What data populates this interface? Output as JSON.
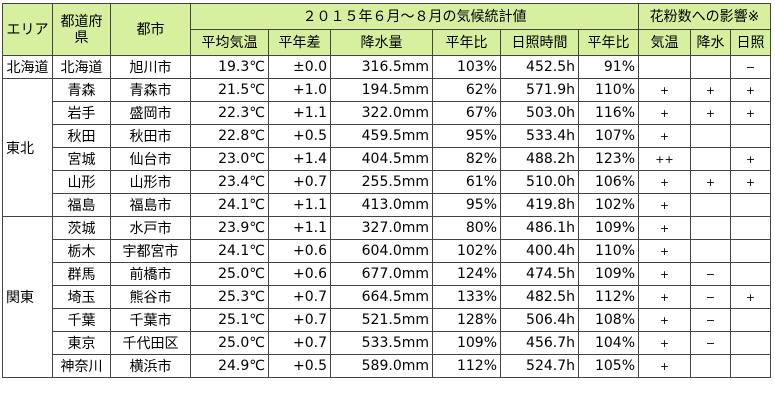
{
  "table": {
    "header": {
      "area": "エリア",
      "pref": "都道府県",
      "city": "都市",
      "period": "２０１５年６月～８月の気候統計値",
      "effect": "花粉数への影響※",
      "columns": [
        "平均気温",
        "平年差",
        "降水量",
        "平年比",
        "日照時間",
        "平年比",
        "気温",
        "降水",
        "日照"
      ]
    },
    "groups": [
      {
        "area": "北海道",
        "rows": [
          [
            "北海道",
            "旭川市",
            "19.3℃",
            "±0.0",
            "316.5mm",
            "103%",
            "452.5h",
            "91%",
            null,
            null,
            "−"
          ]
        ]
      },
      {
        "area": "東北",
        "rows": [
          [
            "青森",
            "青森市",
            "21.5℃",
            "+1.0",
            "194.5mm",
            "62%",
            "571.9h",
            "110%",
            "+",
            "+",
            "+"
          ],
          [
            "岩手",
            "盛岡市",
            "22.3℃",
            "+1.1",
            "322.0mm",
            "67%",
            "503.0h",
            "116%",
            "+",
            "+",
            "+"
          ],
          [
            "秋田",
            "秋田市",
            "22.8℃",
            "+0.5",
            "459.5mm",
            "95%",
            "533.4h",
            "107%",
            "+",
            null,
            null
          ],
          [
            "宮城",
            "仙台市",
            "23.0℃",
            "+1.4",
            "404.5mm",
            "82%",
            "488.2h",
            "123%",
            "++",
            null,
            "+"
          ],
          [
            "山形",
            "山形市",
            "23.4℃",
            "+0.7",
            "255.5mm",
            "61%",
            "510.0h",
            "106%",
            "+",
            "+",
            "+"
          ],
          [
            "福島",
            "福島市",
            "24.1℃",
            "+1.1",
            "413.0mm",
            "95%",
            "419.8h",
            "102%",
            "+",
            null,
            null
          ]
        ]
      },
      {
        "area": "関東",
        "rows": [
          [
            "茨城",
            "水戸市",
            "23.9℃",
            "+1.1",
            "327.0mm",
            "80%",
            "486.1h",
            "109%",
            "+",
            null,
            null
          ],
          [
            "栃木",
            "宇都宮市",
            "24.1℃",
            "+0.6",
            "604.0mm",
            "102%",
            "400.4h",
            "110%",
            "+",
            null,
            null
          ],
          [
            "群馬",
            "前橋市",
            "25.0℃",
            "+0.6",
            "677.0mm",
            "124%",
            "474.5h",
            "109%",
            "+",
            "−",
            null
          ],
          [
            "埼玉",
            "熊谷市",
            "25.3℃",
            "+0.7",
            "664.5mm",
            "133%",
            "482.5h",
            "112%",
            "+",
            "−",
            "+"
          ],
          [
            "千葉",
            "千葉市",
            "25.1℃",
            "+0.7",
            "521.5mm",
            "128%",
            "506.4h",
            "108%",
            "+",
            "−",
            null
          ],
          [
            "東京",
            "千代田区",
            "25.0℃",
            "+0.7",
            "533.5mm",
            "109%",
            "456.7h",
            "104%",
            "+",
            "−",
            null
          ],
          [
            "神奈川",
            "横浜市",
            "24.9℃",
            "+0.5",
            "589.0mm",
            "112%",
            "524.7h",
            "105%",
            "+",
            null,
            null
          ]
        ]
      }
    ]
  }
}
